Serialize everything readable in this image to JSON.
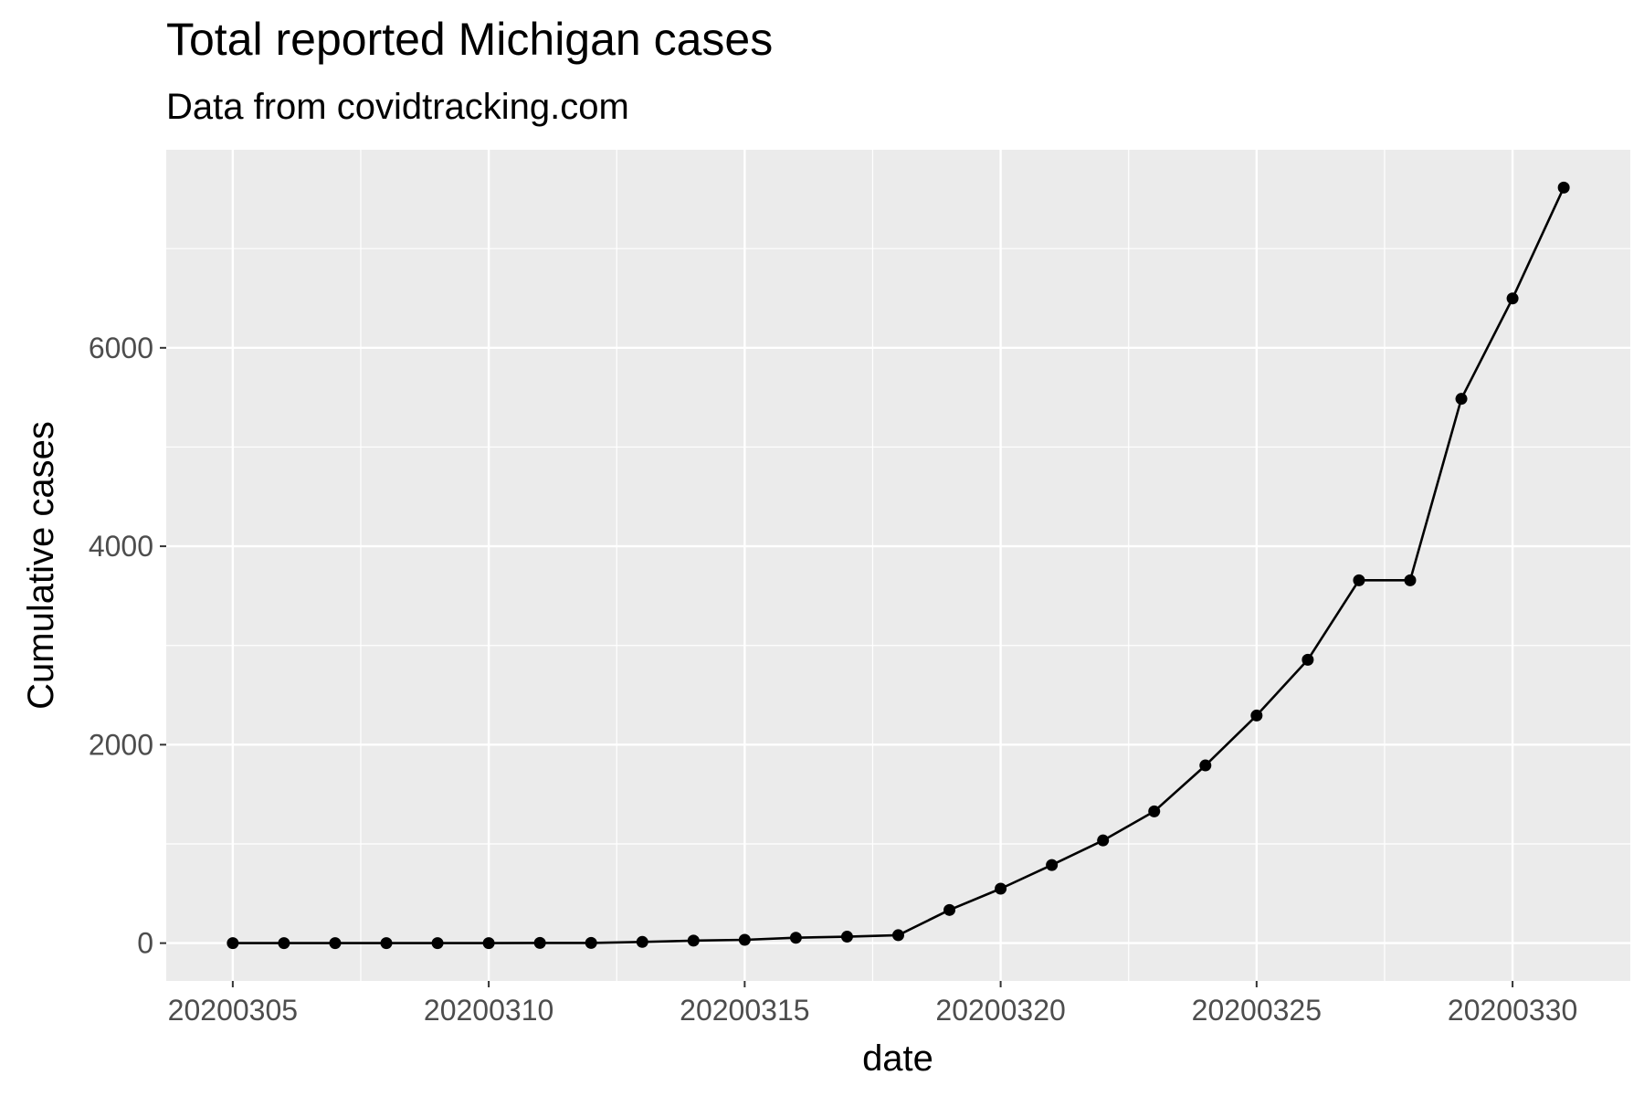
{
  "chart_data": {
    "type": "line",
    "title": "Total reported Michigan cases",
    "subtitle": "Data from covidtracking.com",
    "xlabel": "date",
    "ylabel": "Cumulative cases",
    "x": [
      20200305,
      20200306,
      20200307,
      20200308,
      20200309,
      20200310,
      20200311,
      20200312,
      20200313,
      20200314,
      20200315,
      20200316,
      20200317,
      20200318,
      20200319,
      20200320,
      20200321,
      20200322,
      20200323,
      20200324,
      20200325,
      20200326,
      20200327,
      20200328,
      20200329,
      20200330,
      20200331
    ],
    "values": [
      0,
      0,
      0,
      0,
      0,
      0,
      2,
      2,
      12,
      25,
      33,
      54,
      65,
      80,
      334,
      549,
      787,
      1035,
      1328,
      1791,
      2294,
      2856,
      3657,
      3657,
      5486,
      6498,
      7615
    ],
    "x_ticks": [
      20200305,
      20200310,
      20200315,
      20200320,
      20200325,
      20200330
    ],
    "x_tick_labels": [
      "20200305",
      "20200310",
      "20200315",
      "20200320",
      "20200325",
      "20200330"
    ],
    "xlim": [
      20200303.7,
      20200332.3
    ],
    "y_ticks": [
      0,
      2000,
      4000,
      6000
    ],
    "y_tick_labels": [
      "0",
      "2000",
      "4000",
      "6000"
    ],
    "ylim": [
      -381,
      7996
    ],
    "grid": true,
    "legend": "none",
    "colors": {
      "panel": "#ebebeb",
      "grid": "#ffffff",
      "series": "#000000",
      "tick_text": "#4d4d4d",
      "tick_mark": "#333333"
    }
  }
}
